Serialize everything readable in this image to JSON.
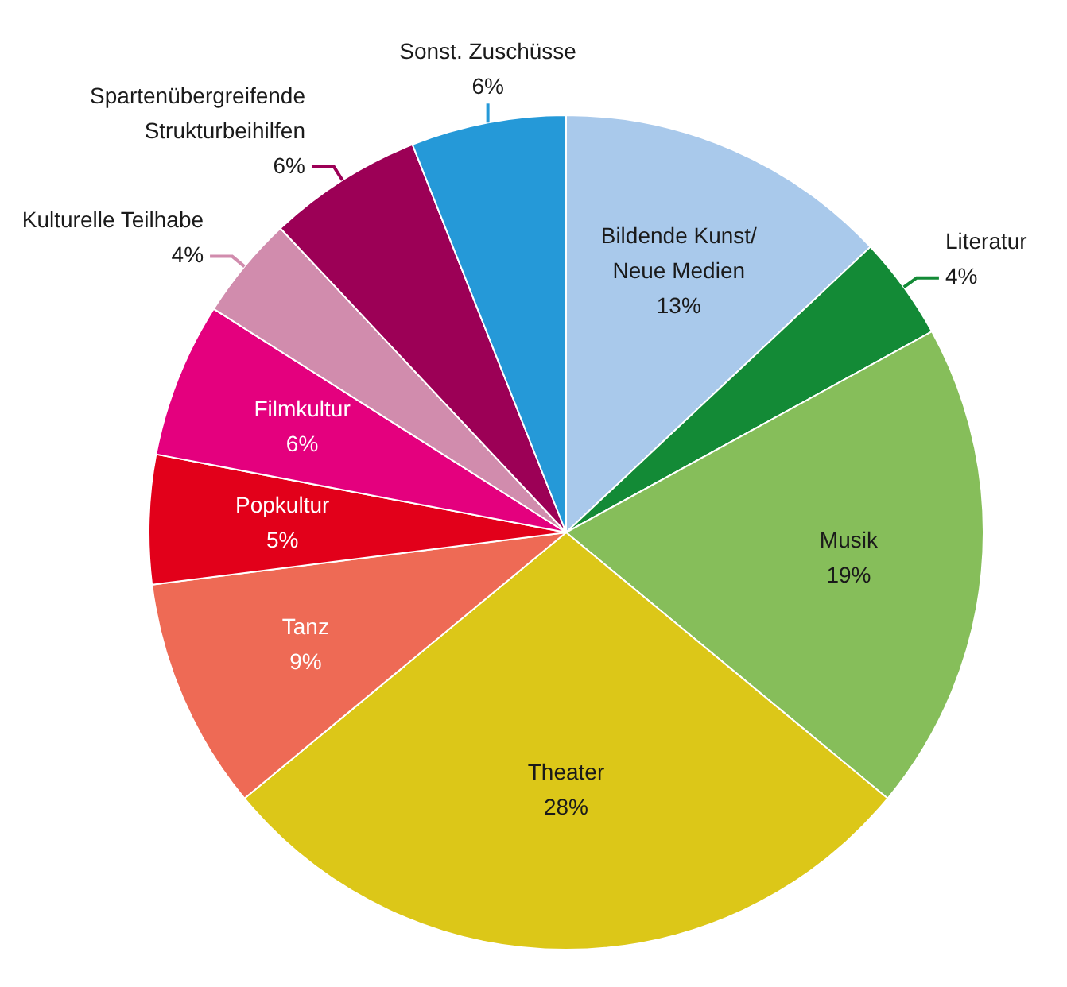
{
  "chart_data": {
    "type": "pie",
    "categories": [
      "Bildende Kunst/ Neue Medien",
      "Literatur",
      "Musik",
      "Theater",
      "Tanz",
      "Popkultur",
      "Filmkultur",
      "Kulturelle Teilhabe",
      "Spartenübergreifende Strukturbeihilfen",
      "Sonst. Zuschüsse"
    ],
    "values": [
      13,
      4,
      19,
      28,
      9,
      5,
      6,
      4,
      6,
      6
    ],
    "colors": [
      "#a9c9eb",
      "#138a36",
      "#86be5a",
      "#dcc718",
      "#ee6a55",
      "#e2001a",
      "#e4007e",
      "#d18cad",
      "#9c0056",
      "#2599d8"
    ],
    "value_labels": [
      "13%",
      "4%",
      "19%",
      "28%",
      "9%",
      "5%",
      "6%",
      "4%",
      "6%",
      "6%"
    ]
  }
}
